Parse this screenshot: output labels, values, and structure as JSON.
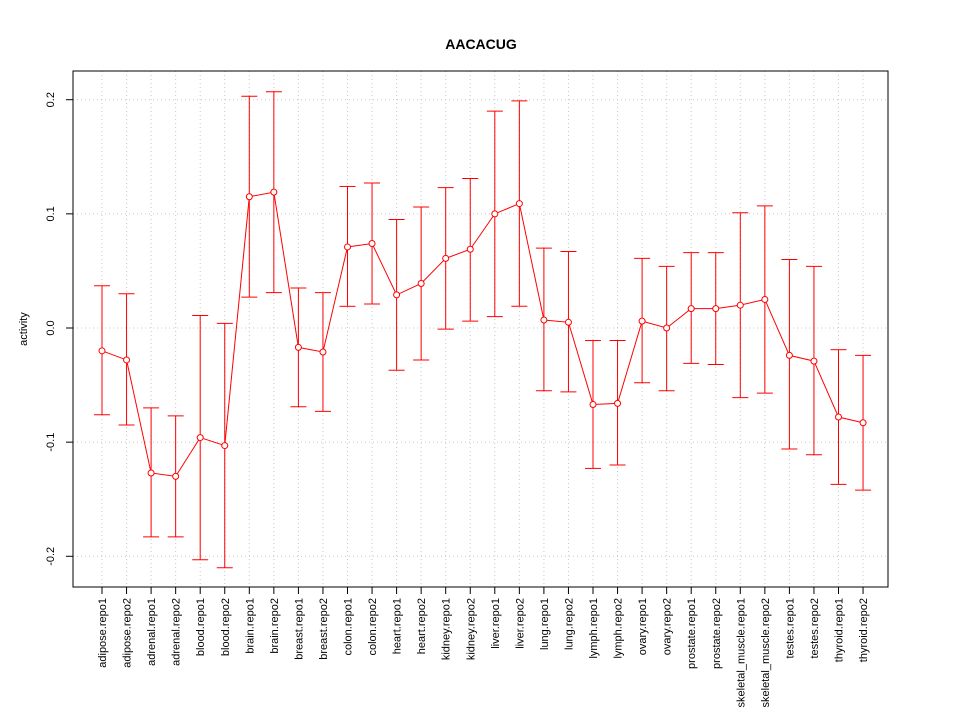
{
  "chart_data": {
    "type": "line",
    "title": "AACACUG",
    "xlabel": "",
    "ylabel": "activity",
    "ylim": [
      -0.225,
      0.225
    ],
    "grid": true,
    "categories": [
      "adipose.repo1",
      "adipose.repo2",
      "adrenal.repo1",
      "adrenal.repo2",
      "blood.repo1",
      "blood.repo2",
      "brain.repo1",
      "brain.repo2",
      "breast.repo1",
      "breast.repo2",
      "colon.repo1",
      "colon.repo2",
      "heart.repo1",
      "heart.repo2",
      "kidney.repo1",
      "kidney.repo2",
      "liver.repo1",
      "liver.repo2",
      "lung.repo1",
      "lung.repo2",
      "lymph.repo1",
      "lymph.repo2",
      "ovary.repo1",
      "ovary.repo2",
      "prostate.repo1",
      "prostate.repo2",
      "skeletal_muscle.repo1",
      "skeletal_muscle.repo2",
      "testes.repo1",
      "testes.repo2",
      "thyroid.repo1",
      "thyroid.repo2"
    ],
    "yticks": [
      -0.2,
      -0.1,
      0.0,
      0.1,
      0.2
    ],
    "ytick_labels": [
      "-0.2",
      "-0.1",
      "0.0",
      "0.1",
      "0.2"
    ],
    "color": "#ff0000",
    "series": [
      {
        "values": [
          -0.02,
          -0.028,
          -0.127,
          -0.13,
          -0.096,
          -0.103,
          0.115,
          0.119,
          -0.017,
          -0.021,
          0.071,
          0.074,
          0.029,
          0.039,
          0.061,
          0.069,
          0.1,
          0.109,
          0.007,
          0.005,
          -0.067,
          -0.066,
          0.006,
          0.0,
          0.017,
          0.017,
          0.02,
          0.025,
          -0.024,
          -0.029,
          -0.078,
          -0.083
        ],
        "lower": [
          -0.076,
          -0.085,
          -0.183,
          -0.183,
          -0.203,
          -0.21,
          0.027,
          0.031,
          -0.069,
          -0.073,
          0.019,
          0.021,
          -0.037,
          -0.028,
          -0.001,
          0.006,
          0.01,
          0.019,
          -0.055,
          -0.056,
          -0.123,
          -0.12,
          -0.048,
          -0.055,
          -0.031,
          -0.032,
          -0.061,
          -0.057,
          -0.106,
          -0.111,
          -0.137,
          -0.142
        ],
        "upper": [
          0.037,
          0.03,
          -0.07,
          -0.077,
          0.011,
          0.004,
          0.203,
          0.207,
          0.035,
          0.031,
          0.124,
          0.127,
          0.095,
          0.106,
          0.123,
          0.131,
          0.19,
          0.199,
          0.07,
          0.067,
          -0.011,
          -0.011,
          0.061,
          0.054,
          0.066,
          0.066,
          0.101,
          0.107,
          0.06,
          0.054,
          -0.019,
          -0.024
        ]
      }
    ]
  }
}
